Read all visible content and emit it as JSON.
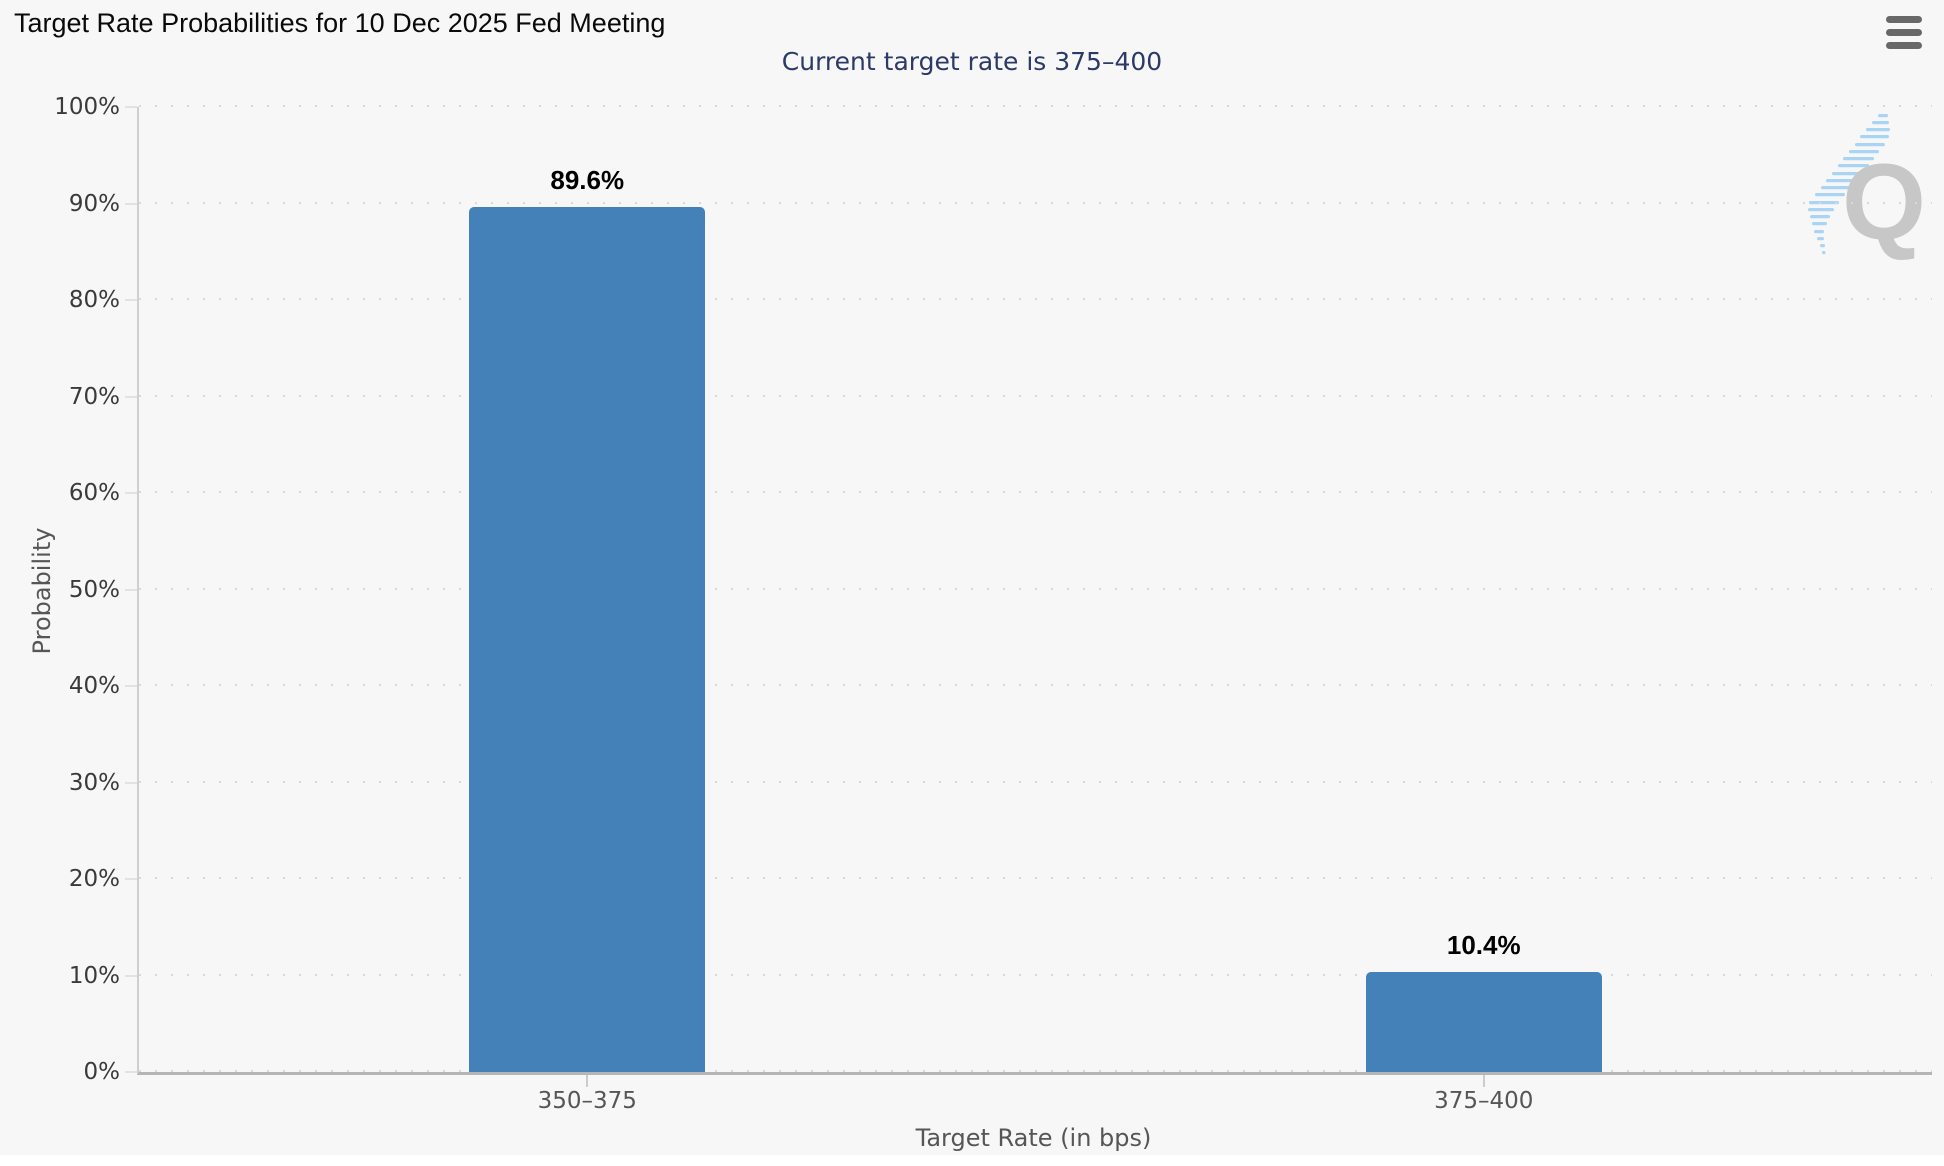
{
  "header": {
    "title": "Target Rate Probabilities for 10 Dec 2025 Fed Meeting",
    "subtitle": "Current target rate is 375–400"
  },
  "watermark": {
    "letter": "Q"
  },
  "chart_data": {
    "type": "bar",
    "title": "Target Rate Probabilities for 10 Dec 2025 Fed Meeting",
    "subtitle": "Current target rate is 375–400",
    "categories": [
      "350–375",
      "375–400"
    ],
    "values": [
      89.6,
      10.4
    ],
    "value_labels": [
      "89.6%",
      "10.4%"
    ],
    "xlabel": "Target Rate (in bps)",
    "ylabel": "Probability",
    "ylim": [
      0,
      100
    ],
    "ytick_values": [
      0,
      10,
      20,
      30,
      40,
      50,
      60,
      70,
      80,
      90,
      100
    ],
    "ytick_labels": [
      "0%",
      "10%",
      "20%",
      "30%",
      "40%",
      "50%",
      "60%",
      "70%",
      "80%",
      "90%",
      "100%"
    ],
    "grid": "horizontal dotted",
    "legend": "none",
    "bar_color": "#4381b8",
    "background_color": "#f7f7f7",
    "subtitle_color": "#2b3a66",
    "gridline_color": "#d9d9d9"
  }
}
